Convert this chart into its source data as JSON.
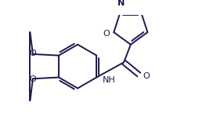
{
  "bg_color": "#ffffff",
  "line_color": "#1a1a4e",
  "line_width": 1.4,
  "font_size_label": 8.0,
  "fig_width": 2.54,
  "fig_height": 1.49,
  "dpi": 100,
  "xlim": [
    0,
    254
  ],
  "ylim": [
    0,
    149
  ]
}
